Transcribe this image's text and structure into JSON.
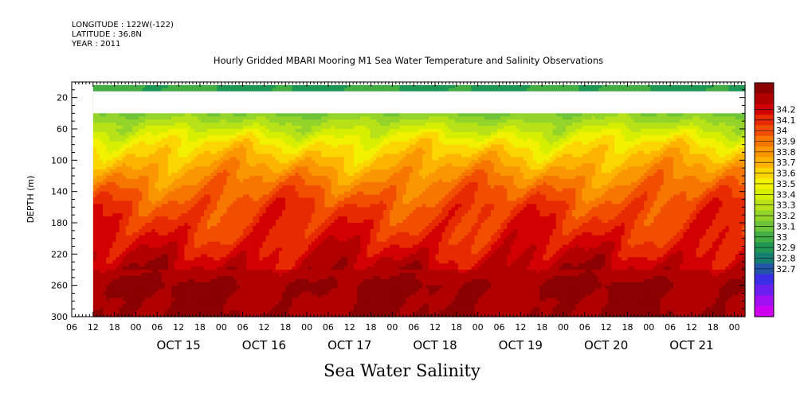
{
  "header": {
    "longitude": "LONGITUDE : 122W(-122)",
    "latitude": "LATITUDE : 36.8N",
    "year": "YEAR : 2011"
  },
  "colors": {
    "missing": "#ffffff",
    "axis": "#000000"
  },
  "chart_data": {
    "type": "heatmap",
    "title": "Hourly Gridded MBARI Mooring M1 Sea Water Temperature and Salinity Observations",
    "xlabel": "Sea Water Salinity",
    "ylabel": "DEPTH (m)",
    "y_inverted": true,
    "ylim": [
      300,
      0
    ],
    "y_ticks": [
      20,
      60,
      100,
      140,
      180,
      220,
      260,
      300
    ],
    "x_start": "2011-10-14T06:00",
    "x_end": "2011-10-22T03:00",
    "x_hour_ticks": [
      "06",
      "12",
      "18",
      "00",
      "06",
      "12",
      "18",
      "00",
      "06",
      "12",
      "18",
      "00",
      "06",
      "12",
      "18",
      "00",
      "06",
      "12",
      "18",
      "00",
      "06",
      "12",
      "18",
      "00",
      "06",
      "12",
      "18",
      "00",
      "06",
      "12",
      "18",
      "00"
    ],
    "x_day_labels": [
      "OCT 15",
      "OCT 16",
      "OCT 17",
      "OCT 18",
      "OCT 19",
      "OCT 20",
      "OCT 21"
    ],
    "data_start": "2011-10-14T12:00",
    "missing_depth_range": [
      12,
      40
    ],
    "colorbar": {
      "levels": [
        32.7,
        32.8,
        32.9,
        33,
        33.1,
        33.2,
        33.3,
        33.4,
        33.5,
        33.6,
        33.7,
        33.8,
        33.9,
        34,
        34.1,
        34.2
      ],
      "labels": [
        "34.2",
        "34.1",
        "34",
        "33.9",
        "33.8",
        "33.7",
        "33.6",
        "33.5",
        "33.4",
        "33.3",
        "33.2",
        "33.1",
        "33",
        "32.9",
        "32.8",
        "32.7"
      ],
      "colors": [
        "#8b0000",
        "#b00000",
        "#d20000",
        "#e82a00",
        "#f24e00",
        "#f67600",
        "#fa9600",
        "#fdb400",
        "#fcd600",
        "#f2f200",
        "#d6ee00",
        "#b8e218",
        "#94d42a",
        "#6ec438",
        "#43ae44",
        "#1f9654",
        "#167e70",
        "#2356a6",
        "#3a2ee6",
        "#6a1ef0",
        "#a010f0",
        "#cc00ee"
      ],
      "band_min": 32.7,
      "band_max": 34.3
    },
    "depth_profile": [
      {
        "depth": 8,
        "value": 33.2
      },
      {
        "depth": 40,
        "value": 33.35
      },
      {
        "depth": 60,
        "value": 33.5
      },
      {
        "depth": 80,
        "value": 33.65
      },
      {
        "depth": 100,
        "value": 33.75
      },
      {
        "depth": 120,
        "value": 33.85
      },
      {
        "depth": 140,
        "value": 33.93
      },
      {
        "depth": 160,
        "value": 34.0
      },
      {
        "depth": 180,
        "value": 34.03
      },
      {
        "depth": 200,
        "value": 34.07
      },
      {
        "depth": 220,
        "value": 34.12
      },
      {
        "depth": 240,
        "value": 34.18
      },
      {
        "depth": 260,
        "value": 34.24
      },
      {
        "depth": 280,
        "value": 34.22
      },
      {
        "depth": 300,
        "value": 34.23
      }
    ]
  }
}
